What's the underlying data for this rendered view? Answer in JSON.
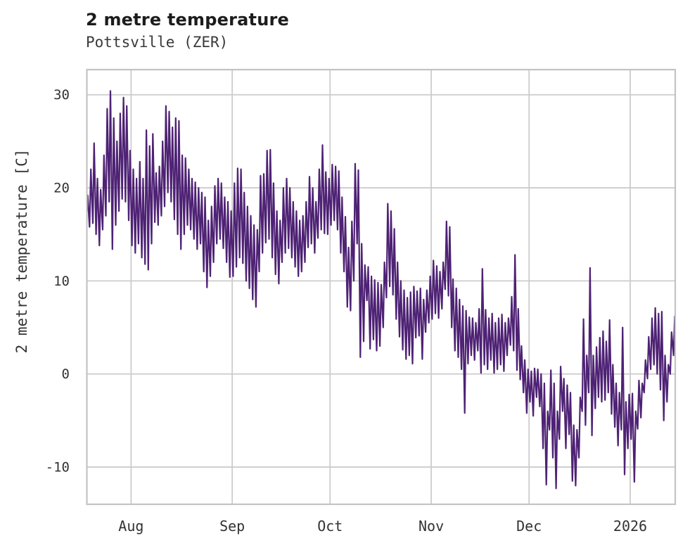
{
  "header": {
    "title": "2 metre temperature",
    "subtitle": "Pottsville (ZER)"
  },
  "chart_data": {
    "type": "line",
    "title": "2 metre temperature",
    "subtitle": "Pottsville (ZER)",
    "xlabel": "",
    "ylabel": "2 metre temperature [C]",
    "legend": null,
    "grid": true,
    "background_color": "#ffffff",
    "grid_color": "#cccccc",
    "spine_color": "#c3c3c3",
    "line_color": "#4e2274",
    "line_width": 2.2,
    "x_tick_labels": [
      "Aug",
      "Sep",
      "Oct",
      "Nov",
      "Dec",
      "2026"
    ],
    "x_tick_days": [
      14,
      45,
      75,
      106,
      136,
      167
    ],
    "y_ticks": [
      -10,
      0,
      10,
      20,
      30
    ],
    "xlim_days": [
      0.45,
      180.8
    ],
    "ylim": [
      -14.0,
      32.7
    ],
    "x_description": "day index of the plotted series; index 0 = mid-July start, ticks mark month starts, series is hourly-like with daily min/max swings",
    "series_summary": {
      "max_value": 30.4,
      "min_value": -12.3,
      "start_value": 18.5,
      "end_value": 6.2
    },
    "daily": {
      "note": "per-day minimum and maximum temperature [C] read from the curve, day 0 .. day 180",
      "t_min": [
        16.2,
        15.8,
        16.2,
        15.0,
        13.8,
        15.5,
        17.0,
        18.5,
        13.4,
        16.0,
        17.5,
        18.8,
        18.5,
        16.5,
        13.8,
        13.0,
        14.0,
        12.5,
        11.8,
        11.2,
        14.0,
        16.3,
        16.0,
        17.0,
        18.0,
        19.5,
        18.5,
        16.6,
        15.0,
        13.4,
        15.0,
        16.0,
        15.5,
        14.5,
        13.4,
        14.0,
        11.0,
        9.3,
        10.5,
        12.0,
        14.0,
        14.5,
        13.5,
        12.0,
        10.4,
        10.5,
        11.5,
        12.5,
        11.9,
        10.0,
        9.2,
        8.0,
        7.2,
        11.0,
        13.0,
        14.1,
        14.5,
        12.5,
        10.7,
        9.7,
        12.0,
        13.0,
        13.5,
        12.5,
        11.5,
        10.5,
        11.0,
        12.0,
        13.6,
        14.0,
        13.0,
        14.6,
        15.5,
        15.1,
        15.0,
        16.0,
        16.5,
        15.5,
        13.0,
        11.0,
        7.2,
        6.8,
        10.0,
        14.0,
        1.8,
        3.5,
        7.9,
        2.7,
        3.7,
        2.5,
        3.0,
        5.0,
        8.2,
        9.4,
        8.5,
        5.9,
        4.0,
        2.6,
        1.6,
        2.0,
        1.1,
        3.9,
        4.1,
        1.6,
        4.5,
        5.5,
        5.9,
        6.5,
        6.0,
        7.0,
        9.1,
        8.4,
        5.0,
        2.5,
        1.8,
        0.5,
        -4.2,
        1.1,
        2.0,
        1.5,
        2.5,
        0.1,
        1.0,
        0.5,
        1.5,
        0.1,
        0.5,
        1.0,
        0.3,
        2.0,
        3.1,
        2.5,
        0.4,
        -0.6,
        -2.0,
        -4.2,
        -3.0,
        -4.5,
        -2.5,
        -3.5,
        -8.0,
        -11.9,
        -6.0,
        -9.0,
        -12.3,
        -7.0,
        -4.0,
        -8.0,
        -6.5,
        -11.5,
        -12.0,
        -9.0,
        -4.0,
        -5.5,
        -2.0,
        -6.6,
        -3.7,
        -2.5,
        -3.0,
        -2.8,
        -2.0,
        -4.3,
        -5.7,
        -7.7,
        -6.0,
        -10.8,
        -8.0,
        -7.0,
        -11.6,
        -5.9,
        -4.7,
        -2.0,
        -0.5,
        0.5,
        1.0,
        0.0,
        -1.7,
        -5.0,
        -3.0,
        0.0,
        2.0
      ],
      "t_max": [
        19.2,
        22.0,
        24.8,
        21.0,
        19.8,
        23.5,
        28.5,
        30.4,
        27.5,
        25.0,
        28.0,
        29.7,
        28.8,
        24.0,
        22.0,
        21.0,
        22.8,
        21.0,
        26.2,
        24.5,
        25.8,
        21.6,
        22.3,
        25.0,
        28.8,
        28.2,
        26.5,
        27.5,
        27.2,
        23.5,
        23.2,
        22.0,
        21.0,
        20.6,
        20.0,
        19.5,
        19.0,
        16.5,
        18.0,
        20.2,
        21.0,
        20.5,
        19.0,
        18.5,
        17.5,
        20.5,
        22.1,
        22.0,
        19.5,
        18.0,
        17.0,
        16.0,
        15.5,
        21.3,
        21.5,
        24.0,
        24.1,
        20.5,
        17.5,
        16.5,
        20.0,
        21.0,
        20.0,
        18.5,
        17.5,
        16.5,
        17.0,
        18.5,
        21.2,
        20.0,
        18.5,
        22.0,
        24.6,
        21.7,
        21.0,
        22.5,
        22.3,
        21.8,
        19.0,
        16.9,
        13.6,
        16.4,
        22.6,
        21.9,
        14.0,
        11.7,
        11.5,
        10.5,
        10.1,
        9.8,
        9.6,
        12.0,
        18.3,
        17.5,
        15.6,
        12.0,
        10.0,
        9.0,
        8.2,
        8.8,
        9.4,
        8.9,
        9.2,
        8.0,
        9.0,
        10.5,
        12.2,
        11.6,
        11.0,
        12.0,
        16.4,
        15.8,
        10.2,
        9.2,
        8.0,
        7.3,
        6.8,
        6.1,
        6.0,
        5.5,
        7.0,
        11.3,
        6.9,
        6.0,
        6.5,
        5.5,
        6.0,
        6.4,
        5.5,
        6.0,
        8.3,
        12.8,
        7.0,
        3.0,
        1.5,
        0.5,
        0.3,
        0.6,
        0.5,
        0.0,
        -1.0,
        -4.0,
        0.4,
        -1.0,
        -4.0,
        0.8,
        -0.5,
        -1.2,
        -2.0,
        -5.5,
        -6.0,
        -2.5,
        5.9,
        2.0,
        11.4,
        2.0,
        2.9,
        3.9,
        4.6,
        3.5,
        5.8,
        1.0,
        -1.0,
        -2.0,
        5.0,
        -3.0,
        -2.2,
        -2.1,
        -4.0,
        -0.7,
        -1.0,
        1.5,
        4.0,
        6.0,
        7.1,
        6.5,
        6.7,
        2.0,
        1.0,
        4.5,
        6.2
      ]
    }
  }
}
